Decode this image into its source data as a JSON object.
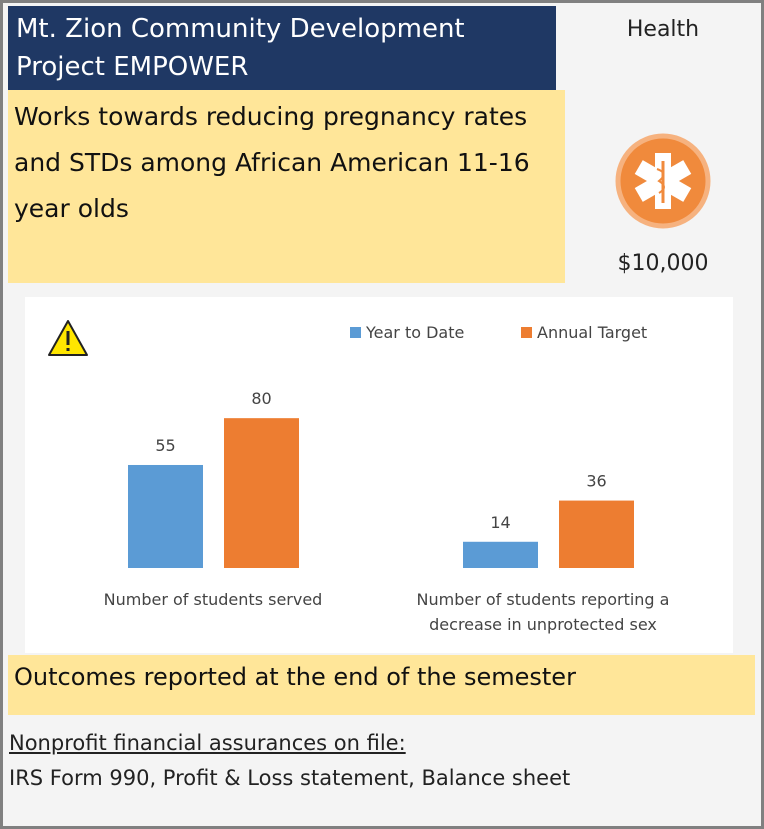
{
  "header": {
    "title": "Mt. Zion Community Development Project EMPOWER",
    "category": "Health",
    "description": "Works towards reducing pregnancy rates and STDs among African American 11-16 year olds",
    "amount": "$10,000"
  },
  "chart_data": {
    "type": "bar",
    "categories": [
      "Number of students served",
      "Number of students reporting a decrease in unprotected sex"
    ],
    "series": [
      {
        "name": "Year to Date",
        "color": "#5b9bd5",
        "values": [
          55,
          14
        ]
      },
      {
        "name": "Annual Target",
        "color": "#ed7d31",
        "values": [
          80,
          36
        ]
      }
    ],
    "legend": "top"
  },
  "outcomes": "Outcomes reported at the end of the semester",
  "footer": {
    "heading": "Nonprofit financial assurances on file:",
    "items": "IRS Form 990, Profit & Loss statement, Balance sheet"
  }
}
